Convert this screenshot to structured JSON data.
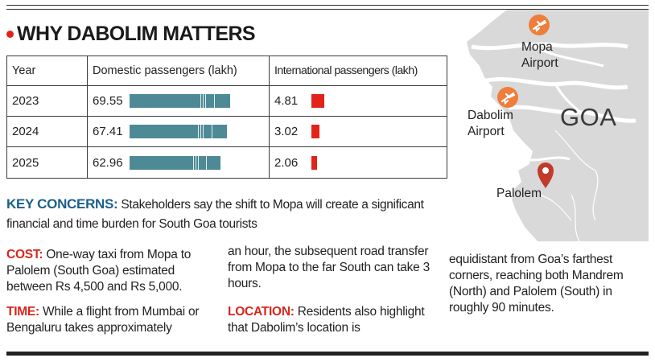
{
  "headline": "WHY DABOLIM MATTERS",
  "table": {
    "headers": [
      "Year",
      "Domestic passengers (lakh)",
      "International passengers (lakh)"
    ],
    "rows": [
      {
        "year": "2023",
        "domestic": "69.55",
        "international": "4.81"
      },
      {
        "year": "2024",
        "domestic": "67.41",
        "international": "3.02"
      },
      {
        "year": "2025",
        "domestic": "62.96",
        "international": "2.06"
      }
    ]
  },
  "key_concerns": {
    "label": "KEY CONCERNS:",
    "text": "Stakeholders say the shift to Mopa will create a significant financial and time burden for South Goa tourists"
  },
  "cost": {
    "label": "COST:",
    "text": "One-way taxi from Mopa to Palolem (South Goa) estimated between Rs 4,500 and Rs 5,000."
  },
  "time": {
    "label": "TIME:",
    "text": "While a flight from Mumbai or Bengaluru takes approximately"
  },
  "time_cont": "an hour, the subsequent road transfer from Mopa to the far South can take 3 hours.",
  "location": {
    "label": "LOCATION:",
    "text": "Residents also highlight that Dabolim’s location is"
  },
  "location_cont": "equidistant from Goa’s farthest corners, reaching both Mandrem (North) and Palolem (South) in roughly 90 minutes.",
  "map": {
    "region_label": "GOA",
    "mopa_label_1": "Mopa",
    "mopa_label_2": "Airport",
    "dabolim_label_1": "Dabolim",
    "dabolim_label_2": "Airport",
    "palolem_label": "Palolem",
    "colors": {
      "land": "#d8d8d8",
      "sea": "#ffffff",
      "marker": "#ef7d3c",
      "pin": "#c23b2a",
      "river": "#ffffff"
    }
  }
}
